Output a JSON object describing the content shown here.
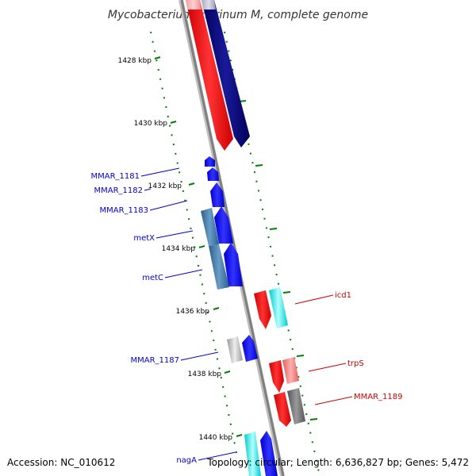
{
  "title": "Mycobacterium marinum M, complete genome",
  "footer": {
    "accession": "Accession: NC_010612",
    "summary": "Topology: circular; Length: 6,636,827 bp; Genes: 5,472"
  },
  "ticks": [
    "1428 kbp",
    "1430 kbp",
    "1432 kbp",
    "1434 kbp",
    "1436 kbp",
    "1438 kbp",
    "1440 kbp"
  ],
  "genes": [
    {
      "name": "MMAR_1181",
      "color": "#0000cc"
    },
    {
      "name": "MMAR_1182",
      "color": "#0000cc"
    },
    {
      "name": "MMAR_1183",
      "color": "#0000cc"
    },
    {
      "name": "metX",
      "color": "#0000cc"
    },
    {
      "name": "metC",
      "color": "#0000cc"
    },
    {
      "name": "MMAR_1187",
      "color": "#0000cc"
    },
    {
      "name": "nagA",
      "color": "#0000cc"
    },
    {
      "name": "icd1",
      "color": "#cc0000"
    },
    {
      "name": "trpS",
      "color": "#cc0000"
    },
    {
      "name": "MMAR_1189",
      "color": "#cc0000"
    }
  ],
  "colors": {
    "forward_strand": "#ff0000",
    "reverse_strand": "#0000ff",
    "forward_cds": "#00ffff",
    "reverse_cds": "#4682b4",
    "ruler": "#008000",
    "backbone": "#808080"
  }
}
